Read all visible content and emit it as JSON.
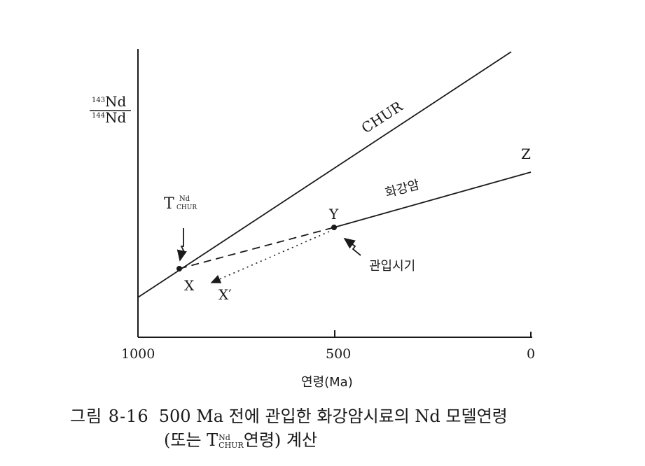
{
  "axes": {
    "y_label_top": "143Nd",
    "y_label_top_mass": "143",
    "y_label_top_elem": "Nd",
    "y_label_bottom_mass": "144",
    "y_label_bottom_elem": "Nd",
    "x_label": "연령(Ma)",
    "x_ticks": [
      "1000",
      "500",
      "0"
    ]
  },
  "lines": {
    "chur_label": "CHUR",
    "granite_label": "화강암",
    "z_label": "Z"
  },
  "points": {
    "x_label": "X",
    "x_prime_label": "X′",
    "y_label": "Y",
    "t_symbol": "T",
    "t_sup": "Nd",
    "t_sub": "CHUR",
    "intrusion_label": "관입시기"
  },
  "caption": {
    "figure_number": "그림 8-16",
    "line1": "500 Ma 전에 관입한 화강암시료의 Nd 모델연령",
    "line2_open": "(또는 ",
    "line2_t": "T",
    "line2_sup": "Nd",
    "line2_sub": "CHUR",
    "line2_close": "연령) 계산"
  }
}
